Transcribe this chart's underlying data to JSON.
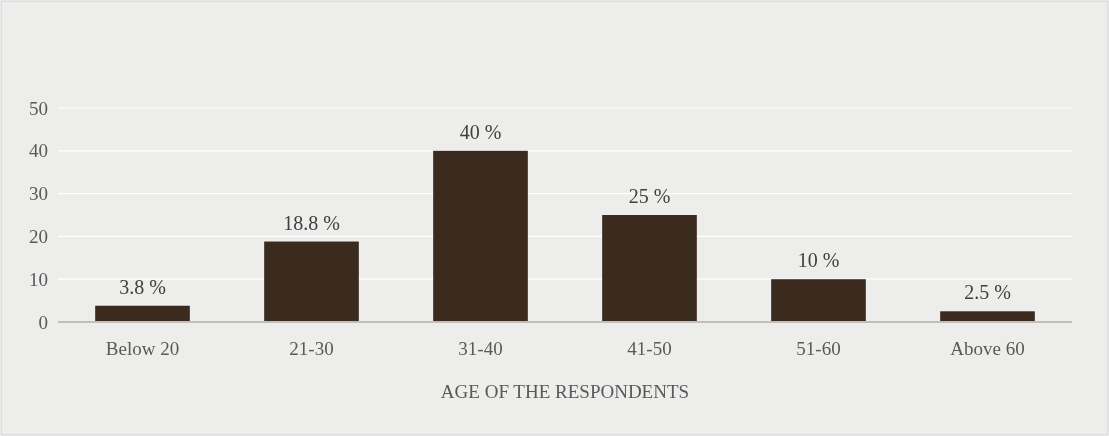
{
  "chart_data": {
    "type": "bar",
    "xlabel": "AGE OF THE RESPONDENTS",
    "categories": [
      "Below 20",
      "21-30",
      "31-40",
      "41-50",
      "51-60",
      "Above 60"
    ],
    "values": [
      3.8,
      18.8,
      40,
      25,
      10,
      2.5
    ],
    "value_labels": [
      "3.8 %",
      "18.8 %",
      "40 %",
      "25 %",
      "10 %",
      "2.5 %"
    ],
    "color": "#3b2a1e",
    "ylim": [
      0,
      50
    ],
    "yticks": [
      0,
      10,
      20,
      30,
      40,
      50
    ],
    "grid": "y"
  }
}
